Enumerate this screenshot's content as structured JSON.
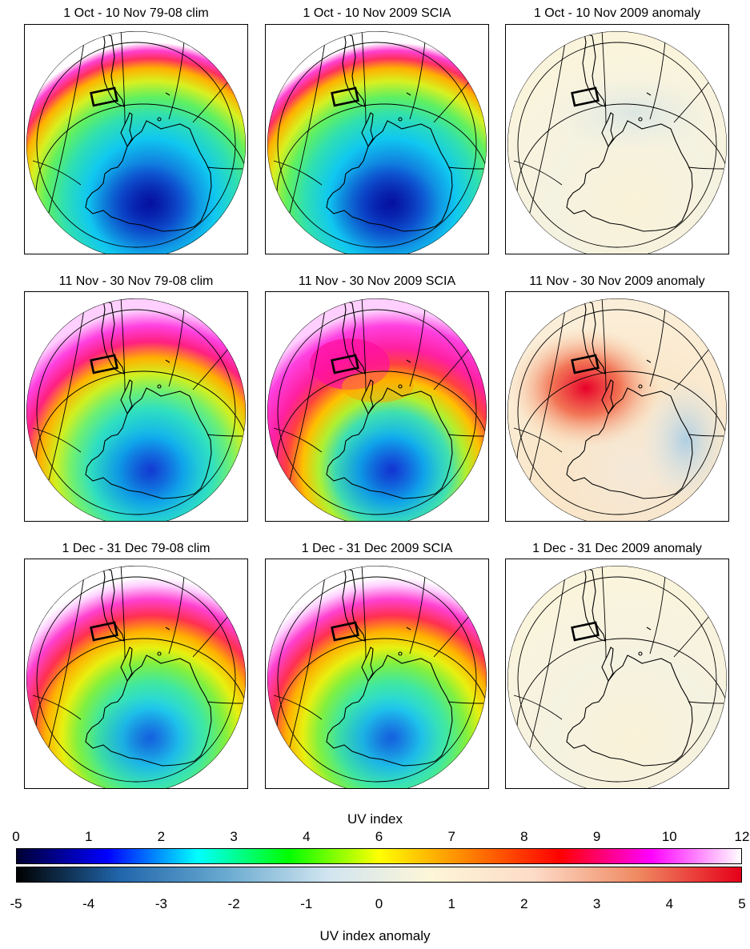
{
  "panels": [
    {
      "title": "1 Oct - 10 Nov 79-08 clim",
      "kind": "uv",
      "scheme": "a"
    },
    {
      "title": "1 Oct - 10 Nov 2009 SCIA",
      "kind": "uv",
      "scheme": "a"
    },
    {
      "title": "1 Oct - 10 Nov 2009 anomaly",
      "kind": "anom",
      "scheme": "a"
    },
    {
      "title": "11 Nov - 30 Nov 79-08 clim",
      "kind": "uv",
      "scheme": "b"
    },
    {
      "title": "11 Nov - 30 Nov 2009 SCIA",
      "kind": "uv",
      "scheme": "b2"
    },
    {
      "title": "11 Nov - 30 Nov 2009 anomaly",
      "kind": "anom",
      "scheme": "b"
    },
    {
      "title": "1 Dec - 31 Dec 79-08 clim",
      "kind": "uv",
      "scheme": "c"
    },
    {
      "title": "1 Dec - 31 Dec 2009 SCIA",
      "kind": "uv",
      "scheme": "c"
    },
    {
      "title": "1 Dec - 31 Dec 2009 anomaly",
      "kind": "anom",
      "scheme": "c"
    }
  ],
  "uv_colorbar": {
    "label": "UV index",
    "ticks": [
      "0",
      "1",
      "2",
      "3",
      "4",
      "6",
      "7",
      "8",
      "9",
      "10",
      "12"
    ],
    "colors": [
      "#000033",
      "#0000ff",
      "#00ffff",
      "#00ff00",
      "#ffff00",
      "#ff8000",
      "#ff0000",
      "#ff00ff",
      "#ffffff"
    ]
  },
  "anomaly_colorbar": {
    "label": "UV index anomaly",
    "ticks": [
      "-5",
      "-4",
      "-3",
      "-2",
      "-1",
      "0",
      "1",
      "2",
      "3",
      "4",
      "5"
    ],
    "colors": [
      "#000000",
      "#2166ac",
      "#67a9cf",
      "#d1e5f0",
      "#fdf6d8",
      "#fddbc7",
      "#ef8a62",
      "#e6001a"
    ]
  }
}
